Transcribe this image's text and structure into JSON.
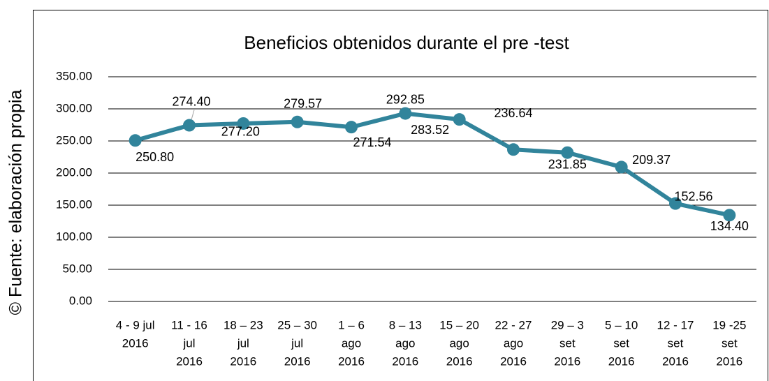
{
  "chart_data": {
    "type": "line",
    "title": "Beneficios obtenidos durante el pre -test",
    "side_note": "© Fuente: elaboración propia",
    "categories": [
      [
        "4 - 9 jul",
        "2016"
      ],
      [
        "11 - 16",
        "jul",
        "2016"
      ],
      [
        "18 – 23",
        "jul",
        "2016"
      ],
      [
        "25 – 30",
        "jul",
        "2016"
      ],
      [
        "1 – 6",
        "ago",
        "2016"
      ],
      [
        "8 – 13",
        "ago",
        "2016"
      ],
      [
        "15 – 20",
        "ago",
        "2016"
      ],
      [
        "22 - 27",
        "ago",
        "2016"
      ],
      [
        "29 – 3",
        "set",
        "2016"
      ],
      [
        "5 – 10",
        "set",
        "2016"
      ],
      [
        "12 - 17",
        "set",
        "2016"
      ],
      [
        "19 -25",
        "set",
        "2016"
      ]
    ],
    "values": [
      250.8,
      274.4,
      277.2,
      279.57,
      271.54,
      292.85,
      283.52,
      236.64,
      231.85,
      209.37,
      152.56,
      134.4
    ],
    "value_labels": [
      "250.80",
      "274.40",
      "277.20",
      "279.57",
      "271.54",
      "292.85",
      "283.52",
      "236.64",
      "231.85",
      "209.37",
      "152.56",
      "134.40"
    ],
    "color": "#31849b",
    "ylim": [
      0,
      350
    ],
    "yticks": [
      {
        "value": 0,
        "label": "0.00"
      },
      {
        "value": 50,
        "label": "50.00"
      },
      {
        "value": 100,
        "label": "100.00"
      },
      {
        "value": 150,
        "label": "150.00"
      },
      {
        "value": 200,
        "label": "200.00"
      },
      {
        "value": 250,
        "label": "250.00"
      },
      {
        "value": 300,
        "label": "300.00"
      },
      {
        "value": 350,
        "label": "350.00"
      }
    ],
    "grid": true
  }
}
